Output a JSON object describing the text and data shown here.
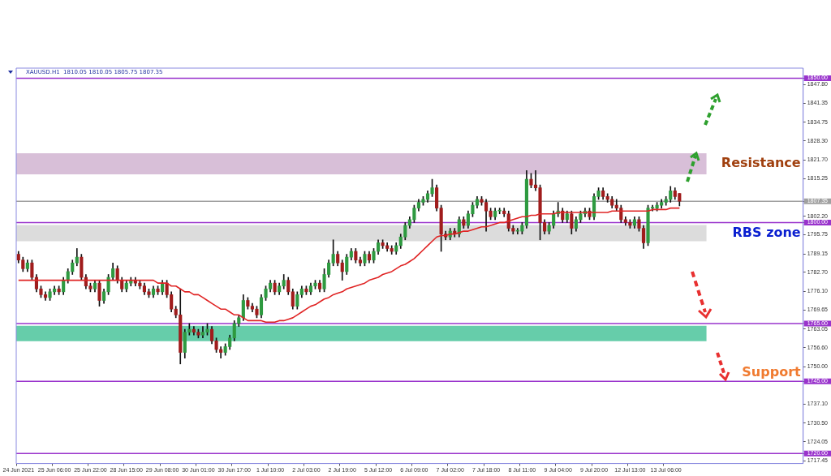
{
  "chart_data": {
    "type": "candlestick",
    "annotations": [
      "XAUUSD.H1  1810.05 1810.05 1805.75 1807.35"
    ],
    "categories": [
      "24 Jun 2021",
      null,
      null,
      null,
      null,
      null,
      null,
      null,
      "25 Jun 06:00",
      null,
      null,
      null,
      null,
      null,
      null,
      null,
      "25 Jun 22:00",
      null,
      null,
      null,
      null,
      null,
      null,
      null,
      "28 Jun 15:00",
      null,
      null,
      null,
      null,
      null,
      null,
      null,
      "29 Jun 08:00",
      null,
      null,
      null,
      null,
      null,
      null,
      null,
      "30 Jun 01:00",
      null,
      null,
      null,
      null,
      null,
      null,
      null,
      "30 Jun 17:00",
      null,
      null,
      null,
      null,
      null,
      null,
      null,
      "1 Jul 10:00",
      null,
      null,
      null,
      null,
      null,
      null,
      null,
      "2 Jul 03:00",
      null,
      null,
      null,
      null,
      null,
      null,
      null,
      "2 Jul 19:00",
      null,
      null,
      null,
      null,
      null,
      null,
      null,
      "5 Jul 12:00",
      null,
      null,
      null,
      null,
      null,
      null,
      null,
      "6 Jul 09:00",
      null,
      null,
      null,
      null,
      null,
      null,
      null,
      "7 Jul 02:00",
      null,
      null,
      null,
      null,
      null,
      null,
      null,
      "7 Jul 18:00",
      null,
      null,
      null,
      null,
      null,
      null,
      null,
      "8 Jul 11:00",
      null,
      null,
      null,
      null,
      null,
      null,
      null,
      "9 Jul 04:00",
      null,
      null,
      null,
      null,
      null,
      null,
      null,
      "9 Jul 20:00",
      null,
      null,
      null,
      null,
      null,
      null,
      null,
      "12 Jul 13:00",
      null,
      null,
      null,
      null,
      null,
      null,
      null,
      "13 Jul 06:00",
      null,
      null,
      null
    ],
    "ohlc": [
      [
        1789,
        1790,
        1786,
        1787
      ],
      [
        1787,
        1788,
        1783,
        1784
      ],
      [
        1784,
        1787,
        1783,
        1786
      ],
      [
        1786,
        1787,
        1780,
        1781
      ],
      [
        1781,
        1782,
        1776,
        1777
      ],
      [
        1777,
        1778,
        1774,
        1775
      ],
      [
        1775,
        1776,
        1773,
        1774
      ],
      [
        1774,
        1777,
        1773,
        1776
      ],
      [
        1776,
        1778,
        1775,
        1777
      ],
      [
        1777,
        1778,
        1775,
        1776
      ],
      [
        1776,
        1781,
        1775,
        1780
      ],
      [
        1780,
        1784,
        1779,
        1783
      ],
      [
        1783,
        1787,
        1782,
        1786
      ],
      [
        1786,
        1791,
        1785,
        1788
      ],
      [
        1788,
        1789,
        1780,
        1781
      ],
      [
        1781,
        1782,
        1777,
        1778
      ],
      [
        1778,
        1779,
        1776,
        1777
      ],
      [
        1777,
        1780,
        1776,
        1779
      ],
      [
        1779,
        1780,
        1771,
        1773
      ],
      [
        1773,
        1777,
        1772,
        1776
      ],
      [
        1776,
        1782,
        1775,
        1781
      ],
      [
        1781,
        1786,
        1780,
        1784
      ],
      [
        1784,
        1785,
        1779,
        1780
      ],
      [
        1780,
        1781,
        1776,
        1777
      ],
      [
        1777,
        1780,
        1776,
        1779
      ],
      [
        1779,
        1781,
        1778,
        1780
      ],
      [
        1780,
        1781,
        1778,
        1779
      ],
      [
        1779,
        1780,
        1777,
        1778
      ],
      [
        1778,
        1779,
        1775,
        1776
      ],
      [
        1776,
        1777,
        1774,
        1775
      ],
      [
        1775,
        1778,
        1774,
        1777
      ],
      [
        1777,
        1778,
        1775,
        1776
      ],
      [
        1776,
        1780,
        1775,
        1779
      ],
      [
        1779,
        1780,
        1774,
        1775
      ],
      [
        1775,
        1776,
        1769,
        1770
      ],
      [
        1770,
        1771,
        1767,
        1768
      ],
      [
        1768,
        1777,
        1751,
        1755
      ],
      [
        1755,
        1763,
        1753,
        1762
      ],
      [
        1762,
        1765,
        1761,
        1763
      ],
      [
        1763,
        1764,
        1761,
        1762
      ],
      [
        1762,
        1763,
        1760,
        1761
      ],
      [
        1761,
        1764,
        1760,
        1762
      ],
      [
        1762,
        1765,
        1761,
        1763
      ],
      [
        1763,
        1764,
        1758,
        1759
      ],
      [
        1759,
        1760,
        1755,
        1756
      ],
      [
        1756,
        1757,
        1753,
        1755
      ],
      [
        1755,
        1758,
        1754,
        1757
      ],
      [
        1757,
        1761,
        1756,
        1760
      ],
      [
        1760,
        1766,
        1759,
        1765
      ],
      [
        1765,
        1768,
        1764,
        1767
      ],
      [
        1767,
        1775,
        1766,
        1773
      ],
      [
        1773,
        1774,
        1770,
        1771
      ],
      [
        1771,
        1772,
        1769,
        1770
      ],
      [
        1770,
        1771,
        1767,
        1768
      ],
      [
        1768,
        1775,
        1767,
        1774
      ],
      [
        1774,
        1778,
        1773,
        1777
      ],
      [
        1777,
        1780,
        1776,
        1779
      ],
      [
        1779,
        1780,
        1775,
        1776
      ],
      [
        1776,
        1779,
        1775,
        1778
      ],
      [
        1778,
        1782,
        1777,
        1780
      ],
      [
        1780,
        1781,
        1775,
        1776
      ],
      [
        1776,
        1777,
        1770,
        1771
      ],
      [
        1771,
        1776,
        1770,
        1775
      ],
      [
        1775,
        1778,
        1774,
        1777
      ],
      [
        1777,
        1778,
        1775,
        1776
      ],
      [
        1776,
        1779,
        1775,
        1778
      ],
      [
        1778,
        1780,
        1777,
        1779
      ],
      [
        1779,
        1780,
        1776,
        1777
      ],
      [
        1777,
        1784,
        1776,
        1782
      ],
      [
        1782,
        1787,
        1781,
        1786
      ],
      [
        1786,
        1794,
        1785,
        1789
      ],
      [
        1789,
        1790,
        1785,
        1786
      ],
      [
        1786,
        1787,
        1780,
        1783
      ],
      [
        1783,
        1789,
        1782,
        1788
      ],
      [
        1788,
        1791,
        1787,
        1790
      ],
      [
        1790,
        1791,
        1786,
        1787
      ],
      [
        1787,
        1788,
        1785,
        1786
      ],
      [
        1786,
        1790,
        1785,
        1789
      ],
      [
        1789,
        1790,
        1786,
        1787
      ],
      [
        1787,
        1791,
        1786,
        1790
      ],
      [
        1790,
        1794,
        1789,
        1793
      ],
      [
        1793,
        1794,
        1791,
        1792
      ],
      [
        1792,
        1793,
        1790,
        1791
      ],
      [
        1791,
        1792,
        1789,
        1790
      ],
      [
        1790,
        1793,
        1789,
        1792
      ],
      [
        1792,
        1796,
        1791,
        1795
      ],
      [
        1795,
        1800,
        1794,
        1799
      ],
      [
        1799,
        1802,
        1798,
        1801
      ],
      [
        1801,
        1806,
        1800,
        1805
      ],
      [
        1805,
        1808,
        1804,
        1807
      ],
      [
        1807,
        1809,
        1806,
        1808
      ],
      [
        1808,
        1811,
        1807,
        1810
      ],
      [
        1810,
        1815,
        1809,
        1812
      ],
      [
        1812,
        1813,
        1804,
        1805
      ],
      [
        1805,
        1806,
        1790,
        1796
      ],
      [
        1796,
        1797,
        1794,
        1795
      ],
      [
        1795,
        1798,
        1794,
        1797
      ],
      [
        1797,
        1798,
        1795,
        1796
      ],
      [
        1796,
        1802,
        1795,
        1801
      ],
      [
        1801,
        1802,
        1798,
        1799
      ],
      [
        1799,
        1804,
        1798,
        1803
      ],
      [
        1803,
        1807,
        1802,
        1806
      ],
      [
        1806,
        1809,
        1805,
        1808
      ],
      [
        1808,
        1809,
        1806,
        1807
      ],
      [
        1807,
        1808,
        1797,
        1804
      ],
      [
        1804,
        1805,
        1801,
        1802
      ],
      [
        1802,
        1805,
        1801,
        1804
      ],
      [
        1804,
        1805,
        1803,
        1804
      ],
      [
        1804,
        1805,
        1802,
        1803
      ],
      [
        1803,
        1804,
        1797,
        1798
      ],
      [
        1798,
        1799,
        1796,
        1797
      ],
      [
        1797,
        1798,
        1796,
        1797
      ],
      [
        1797,
        1800,
        1796,
        1799
      ],
      [
        1799,
        1818,
        1798,
        1815
      ],
      [
        1815,
        1817,
        1812,
        1813
      ],
      [
        1813,
        1818,
        1811,
        1812
      ],
      [
        1812,
        1813,
        1794,
        1800
      ],
      [
        1800,
        1801,
        1796,
        1797
      ],
      [
        1797,
        1800,
        1796,
        1799
      ],
      [
        1799,
        1804,
        1798,
        1803
      ],
      [
        1803,
        1807,
        1802,
        1804
      ],
      [
        1804,
        1805,
        1800,
        1801
      ],
      [
        1801,
        1804,
        1800,
        1803
      ],
      [
        1803,
        1804,
        1796,
        1798
      ],
      [
        1798,
        1802,
        1797,
        1801
      ],
      [
        1801,
        1804,
        1800,
        1803
      ],
      [
        1803,
        1805,
        1802,
        1804
      ],
      [
        1804,
        1805,
        1801,
        1802
      ],
      [
        1802,
        1810,
        1801,
        1809
      ],
      [
        1809,
        1812,
        1808,
        1811
      ],
      [
        1811,
        1812,
        1808,
        1809
      ],
      [
        1809,
        1810,
        1807,
        1808
      ],
      [
        1808,
        1809,
        1805,
        1806
      ],
      [
        1806,
        1808,
        1804,
        1805
      ],
      [
        1805,
        1806,
        1800,
        1801
      ],
      [
        1801,
        1802,
        1799,
        1800
      ],
      [
        1800,
        1801,
        1798,
        1799
      ],
      [
        1799,
        1802,
        1798,
        1801
      ],
      [
        1801,
        1802,
        1797,
        1798
      ],
      [
        1798,
        1799,
        1791,
        1793
      ],
      [
        1793,
        1806,
        1792,
        1805
      ],
      [
        1805,
        1806,
        1804,
        1805
      ],
      [
        1805,
        1807,
        1804,
        1806
      ],
      [
        1806,
        1808,
        1805,
        1807
      ],
      [
        1807,
        1809,
        1806,
        1808
      ],
      [
        1808,
        1812.5,
        1807,
        1811
      ],
      [
        1811,
        1812,
        1808,
        1809
      ],
      [
        1810.05,
        1810.05,
        1805.75,
        1807.35
      ]
    ],
    "series": [
      {
        "type": "line",
        "color": "#e02424",
        "values": [
          1780,
          1780,
          1780,
          1780,
          1780,
          1780,
          1780,
          1780,
          1780,
          1780,
          1780,
          1780,
          1780,
          1780,
          1780,
          1780,
          1780,
          1780,
          1780,
          1780,
          1780,
          1780,
          1780,
          1780,
          1780,
          1780,
          1780,
          1780,
          1780,
          1780,
          1780,
          1779,
          1779,
          1779,
          1778,
          1778,
          1777,
          1776,
          1776,
          1775,
          1775,
          1774,
          1773,
          1772,
          1771,
          1770,
          1770,
          1769,
          1768,
          1768,
          1767,
          1766,
          1766,
          1766,
          1766,
          1765.5,
          1765.5,
          1765.5,
          1766,
          1766,
          1766.5,
          1767,
          1768,
          1769,
          1770,
          1771,
          1771.5,
          1772.5,
          1773.5,
          1774,
          1775,
          1775.5,
          1776,
          1777,
          1777.5,
          1778,
          1778.5,
          1779,
          1780,
          1780.5,
          1781,
          1782,
          1782.5,
          1783,
          1784,
          1785,
          1785.5,
          1786.5,
          1787.5,
          1789,
          1790.5,
          1792,
          1793.5,
          1795,
          1795.5,
          1795.5,
          1796,
          1796,
          1796.5,
          1797,
          1797,
          1797.5,
          1798,
          1798.5,
          1798.5,
          1799,
          1799.5,
          1800,
          1800,
          1800.5,
          1801,
          1801.5,
          1802,
          1802,
          1802.5,
          1802.5,
          1803,
          1803,
          1803,
          1803,
          1803.5,
          1803.5,
          1803.5,
          1803.5,
          1803.5,
          1803.5,
          1803.5,
          1803.5,
          1803.5,
          1803.5,
          1803.5,
          1803.5,
          1804,
          1804,
          1804,
          1804,
          1804,
          1804,
          1804,
          1804,
          1804,
          1804.5,
          1804.5,
          1804.5,
          1804.5,
          1805,
          1805,
          1805
        ]
      }
    ],
    "ylim": [
      1716.5,
      1853.5
    ],
    "yticks": [
      1717.45,
      {
        "value": 1720,
        "label": "1720.00"
      },
      1724.05,
      {
        "value": 1730.5,
        "label": "1730.50"
      },
      {
        "value": 1737.1,
        "label": "1737.10"
      },
      {
        "value": 1745,
        "label": "1745.00"
      },
      {
        "value": 1750,
        "label": "1750.00"
      },
      {
        "value": 1756.6,
        "label": "1756.60"
      },
      1763.05,
      {
        "value": 1765,
        "label": "1765.00"
      },
      1769.65,
      {
        "value": 1776.1,
        "label": "1776.10"
      },
      {
        "value": 1782.7,
        "label": "1782.70"
      },
      1789.15,
      1795.75,
      {
        "value": 1800,
        "label": "1800.00"
      },
      {
        "value": 1802.2,
        "label": "1802.20"
      },
      1807.35,
      1815.25,
      {
        "value": 1821.7,
        "label": "1821.70"
      },
      {
        "value": 1828.3,
        "label": "1828.30"
      },
      1834.75,
      1841.35,
      {
        "value": 1847.8,
        "label": "1847.80"
      },
      {
        "value": 1850,
        "label": "1850.00"
      }
    ],
    "bands": [
      {
        "axis": "y",
        "from": 1816.7,
        "to": 1824,
        "label": "Resistance",
        "color": "#d8bfd8"
      },
      {
        "axis": "y",
        "from": 1793.5,
        "to": 1799.1,
        "label": "RBS zone",
        "color": "#dcdcdc"
      },
      {
        "axis": "y",
        "from": 1758.9,
        "to": 1764.2,
        "color": "#66cdaa"
      }
    ],
    "ref_lines": [
      {
        "axis": "y",
        "value": 1850,
        "color": "#9933cc"
      },
      {
        "axis": "y",
        "value": 1807.35,
        "color": "#a0a0a0"
      },
      {
        "axis": "y",
        "value": 1800,
        "color": "#9933cc"
      },
      {
        "axis": "y",
        "value": 1765,
        "color": "#9933cc"
      },
      {
        "axis": "y",
        "value": 1745,
        "color": "#9933cc",
        "label": "Support"
      },
      {
        "axis": "y",
        "value": 1720,
        "color": "#9933cc"
      }
    ]
  }
}
